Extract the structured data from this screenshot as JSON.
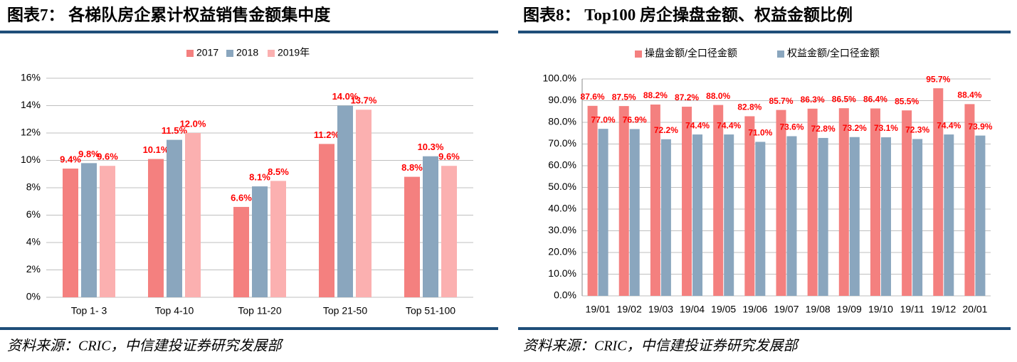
{
  "chart_data": [
    {
      "type": "bar",
      "title": "图表7： 各梯队房企累计权益销售金额集中度",
      "source": "资料来源：CRIC，中信建投证券研究发展部",
      "categories": [
        "Top 1- 3",
        "Top 4-10",
        "Top 11-20",
        "Top 21-50",
        "Top 51-100"
      ],
      "series": [
        {
          "name": "2017",
          "color": "#f4807f",
          "values": [
            9.4,
            10.1,
            6.6,
            11.2,
            8.8
          ],
          "value_labels": [
            "9.4%",
            "10.1%",
            "6.6%",
            "11.2%",
            "8.8%"
          ]
        },
        {
          "name": "2018",
          "color": "#8aa6be",
          "values": [
            9.8,
            11.5,
            8.1,
            14.0,
            10.3
          ],
          "value_labels": [
            "9.8%",
            "11.5%",
            "8.1%",
            "14.0%",
            "10.3%"
          ]
        },
        {
          "name": "2019年",
          "color": "#fbb0b0",
          "values": [
            9.6,
            12.0,
            8.5,
            13.7,
            9.6
          ],
          "value_labels": [
            "9.6%",
            "12.0%",
            "8.5%",
            "13.7%",
            "9.6%"
          ]
        }
      ],
      "ylim": [
        0,
        16
      ],
      "yticks": [
        {
          "value": 0,
          "label": "0%"
        },
        {
          "value": 2,
          "label": "2%"
        },
        {
          "value": 4,
          "label": "4%"
        },
        {
          "value": 6,
          "label": "6%"
        },
        {
          "value": 8,
          "label": "8%"
        },
        {
          "value": 10,
          "label": "10%"
        },
        {
          "value": 12,
          "label": "12%"
        },
        {
          "value": 14,
          "label": "14%"
        },
        {
          "value": 16,
          "label": "16%"
        }
      ],
      "grid": true
    },
    {
      "type": "bar",
      "title": "图表8： Top100 房企操盘金额、权益金额比例",
      "source": "资料来源：CRIC，中信建投证券研究发展部",
      "categories": [
        "19/01",
        "19/02",
        "19/03",
        "19/04",
        "19/05",
        "19/06",
        "19/07",
        "19/08",
        "19/09",
        "19/10",
        "19/11",
        "19/12",
        "20/01"
      ],
      "series": [
        {
          "name": "操盘金额/全口径金额",
          "color": "#f4807f",
          "values": [
            87.6,
            87.5,
            88.2,
            87.2,
            88.0,
            82.8,
            85.7,
            86.3,
            86.5,
            86.4,
            85.5,
            95.7,
            88.4
          ],
          "value_labels": [
            "87.6%",
            "87.5%",
            "88.2%",
            "87.2%",
            "88.0%",
            "82.8%",
            "85.7%",
            "86.3%",
            "86.5%",
            "86.4%",
            "85.5%",
            "95.7%",
            "88.4%"
          ]
        },
        {
          "name": "权益金额/全口径金额",
          "color": "#8aa6be",
          "values": [
            77.0,
            76.9,
            72.2,
            74.4,
            74.4,
            71.0,
            73.6,
            72.8,
            73.2,
            73.1,
            72.3,
            74.4,
            73.9
          ],
          "value_labels": [
            "77.0%",
            "76.9%",
            "72.2%",
            "74.4%",
            "74.4%",
            "71.0%",
            "73.6%",
            "72.8%",
            "73.2%",
            "73.1%",
            "72.3%",
            "74.4%",
            "73.9%"
          ]
        }
      ],
      "ylim": [
        0,
        100
      ],
      "yticks": [
        {
          "value": 0,
          "label": "0.0%"
        },
        {
          "value": 10,
          "label": "10.0%"
        },
        {
          "value": 20,
          "label": "20.0%"
        },
        {
          "value": 30,
          "label": "30.0%"
        },
        {
          "value": 40,
          "label": "40.0%"
        },
        {
          "value": 50,
          "label": "50.0%"
        },
        {
          "value": 60,
          "label": "60.0%"
        },
        {
          "value": 70,
          "label": "70.0%"
        },
        {
          "value": 80,
          "label": "80.0%"
        },
        {
          "value": 90,
          "label": "90.0%"
        },
        {
          "value": 100,
          "label": "100.0%"
        }
      ],
      "grid": true
    }
  ]
}
